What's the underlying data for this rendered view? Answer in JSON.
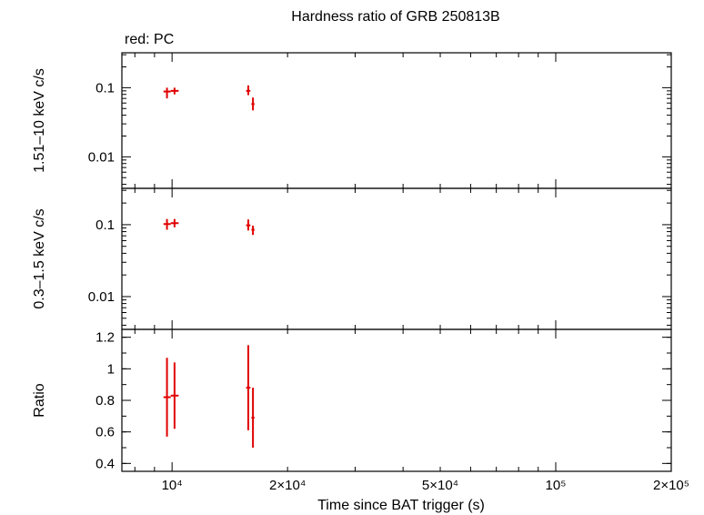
{
  "title": "Hardness ratio of GRB 250813B",
  "legend_note": "red: PC",
  "colors": {
    "series": "#e00000",
    "axes": "#000000"
  },
  "chart_data": [
    {
      "type": "scatter",
      "ylabel": "1.51–10 keV c/s",
      "ylog": true,
      "xlog": true,
      "xlim": [
        7400,
        200000
      ],
      "ylim": [
        0.0035,
        0.32
      ],
      "yticks": [
        {
          "v": 0.01,
          "label": "0.01"
        },
        {
          "v": 0.1,
          "label": "0.1"
        }
      ],
      "series": [
        {
          "color": "#e00000",
          "points": [
            {
              "x": 9700,
              "xlo": 9500,
              "xhi": 9920,
              "y": 0.088,
              "ylo": 0.07,
              "yhi": 0.1
            },
            {
              "x": 10150,
              "xlo": 9920,
              "xhi": 10400,
              "y": 0.09,
              "ylo": 0.08,
              "yhi": 0.1
            },
            {
              "x": 15800,
              "xlo": 15600,
              "xhi": 16000,
              "y": 0.09,
              "ylo": 0.078,
              "yhi": 0.108
            },
            {
              "x": 16250,
              "xlo": 16100,
              "xhi": 16400,
              "y": 0.058,
              "ylo": 0.047,
              "yhi": 0.072
            }
          ]
        }
      ]
    },
    {
      "type": "scatter",
      "ylabel": "0.3–1.5 keV c/s",
      "ylog": true,
      "xlog": true,
      "xlim": [
        7400,
        200000
      ],
      "ylim": [
        0.0035,
        0.32
      ],
      "yticks": [
        {
          "v": 0.01,
          "label": "0.01"
        },
        {
          "v": 0.1,
          "label": "0.1"
        }
      ],
      "series": [
        {
          "color": "#e00000",
          "points": [
            {
              "x": 9700,
              "xlo": 9500,
              "xhi": 9920,
              "y": 0.102,
              "ylo": 0.085,
              "yhi": 0.12
            },
            {
              "x": 10150,
              "xlo": 9920,
              "xhi": 10400,
              "y": 0.105,
              "ylo": 0.092,
              "yhi": 0.12
            },
            {
              "x": 15800,
              "xlo": 15600,
              "xhi": 16000,
              "y": 0.098,
              "ylo": 0.083,
              "yhi": 0.118
            },
            {
              "x": 16250,
              "xlo": 16100,
              "xhi": 16400,
              "y": 0.085,
              "ylo": 0.072,
              "yhi": 0.097
            }
          ]
        }
      ]
    },
    {
      "type": "scatter",
      "ylabel": "Ratio",
      "xlabel": "Time since BAT trigger (s)",
      "ylog": false,
      "xlog": true,
      "xlim": [
        7400,
        200000
      ],
      "ylim": [
        0.35,
        1.25
      ],
      "yticks": [
        {
          "v": 0.4,
          "label": "0.4"
        },
        {
          "v": 0.6,
          "label": "0.6"
        },
        {
          "v": 0.8,
          "label": "0.8"
        },
        {
          "v": 1.0,
          "label": "1"
        },
        {
          "v": 1.2,
          "label": "1.2"
        }
      ],
      "xticks": [
        {
          "v": 10000,
          "label": "10⁴"
        },
        {
          "v": 20000,
          "label": "2×10⁴"
        },
        {
          "v": 50000,
          "label": "5×10⁴"
        },
        {
          "v": 100000,
          "label": "10⁵"
        },
        {
          "v": 200000,
          "label": "2×10⁵"
        }
      ],
      "series": [
        {
          "color": "#e00000",
          "points": [
            {
              "x": 9700,
              "xlo": 9500,
              "xhi": 9920,
              "y": 0.82,
              "ylo": 0.57,
              "yhi": 1.07
            },
            {
              "x": 10150,
              "xlo": 9920,
              "xhi": 10400,
              "y": 0.83,
              "ylo": 0.62,
              "yhi": 1.04
            },
            {
              "x": 15800,
              "xlo": 15600,
              "xhi": 16000,
              "y": 0.88,
              "ylo": 0.61,
              "yhi": 1.15
            },
            {
              "x": 16250,
              "xlo": 16100,
              "xhi": 16400,
              "y": 0.69,
              "ylo": 0.5,
              "yhi": 0.88
            }
          ]
        }
      ]
    }
  ]
}
